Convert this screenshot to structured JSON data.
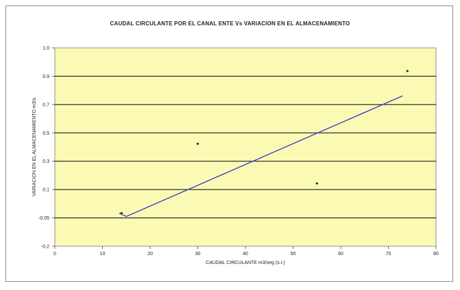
{
  "chart_data": {
    "type": "scatter",
    "title": "CAUDAL CIRCULANTE POR EL CANAL ENTE Vs VARIACION EN EL ALMACENAMIENTO",
    "xlabel": "CAUDAL CIRCULANTE m3/seg (s.r.)",
    "ylabel": "VARIACION EN EL ALMACENAMIENTO m3/s",
    "xlim": [
      0,
      80
    ],
    "ylim": [
      -0.2,
      1.0
    ],
    "x_ticks": [
      "0",
      "10",
      "20",
      "30",
      "40",
      "50",
      "60",
      "70",
      "80"
    ],
    "y_ticks": [
      "-0.2",
      "-0.05",
      "0.1",
      "0.3",
      "0.5",
      "0.7",
      "0.9",
      "1.0"
    ],
    "grid": "horizontal",
    "colors": {
      "plot_bg": "#fafab5",
      "grid_line": "#000000",
      "trend_line": "#3f3fc8",
      "point": "#2a2a2a"
    },
    "series": [
      {
        "points": [
          {
            "x": 14,
            "y": 0.0
          },
          {
            "x": 30,
            "y": 0.42
          },
          {
            "x": 55,
            "y": 0.18
          },
          {
            "x": 74,
            "y": 0.86
          }
        ]
      }
    ],
    "trendline": {
      "points": [
        {
          "x": 13.5,
          "y": 0.0
        },
        {
          "x": 15,
          "y": -0.02
        },
        {
          "x": 73,
          "y": 0.71
        }
      ]
    }
  }
}
